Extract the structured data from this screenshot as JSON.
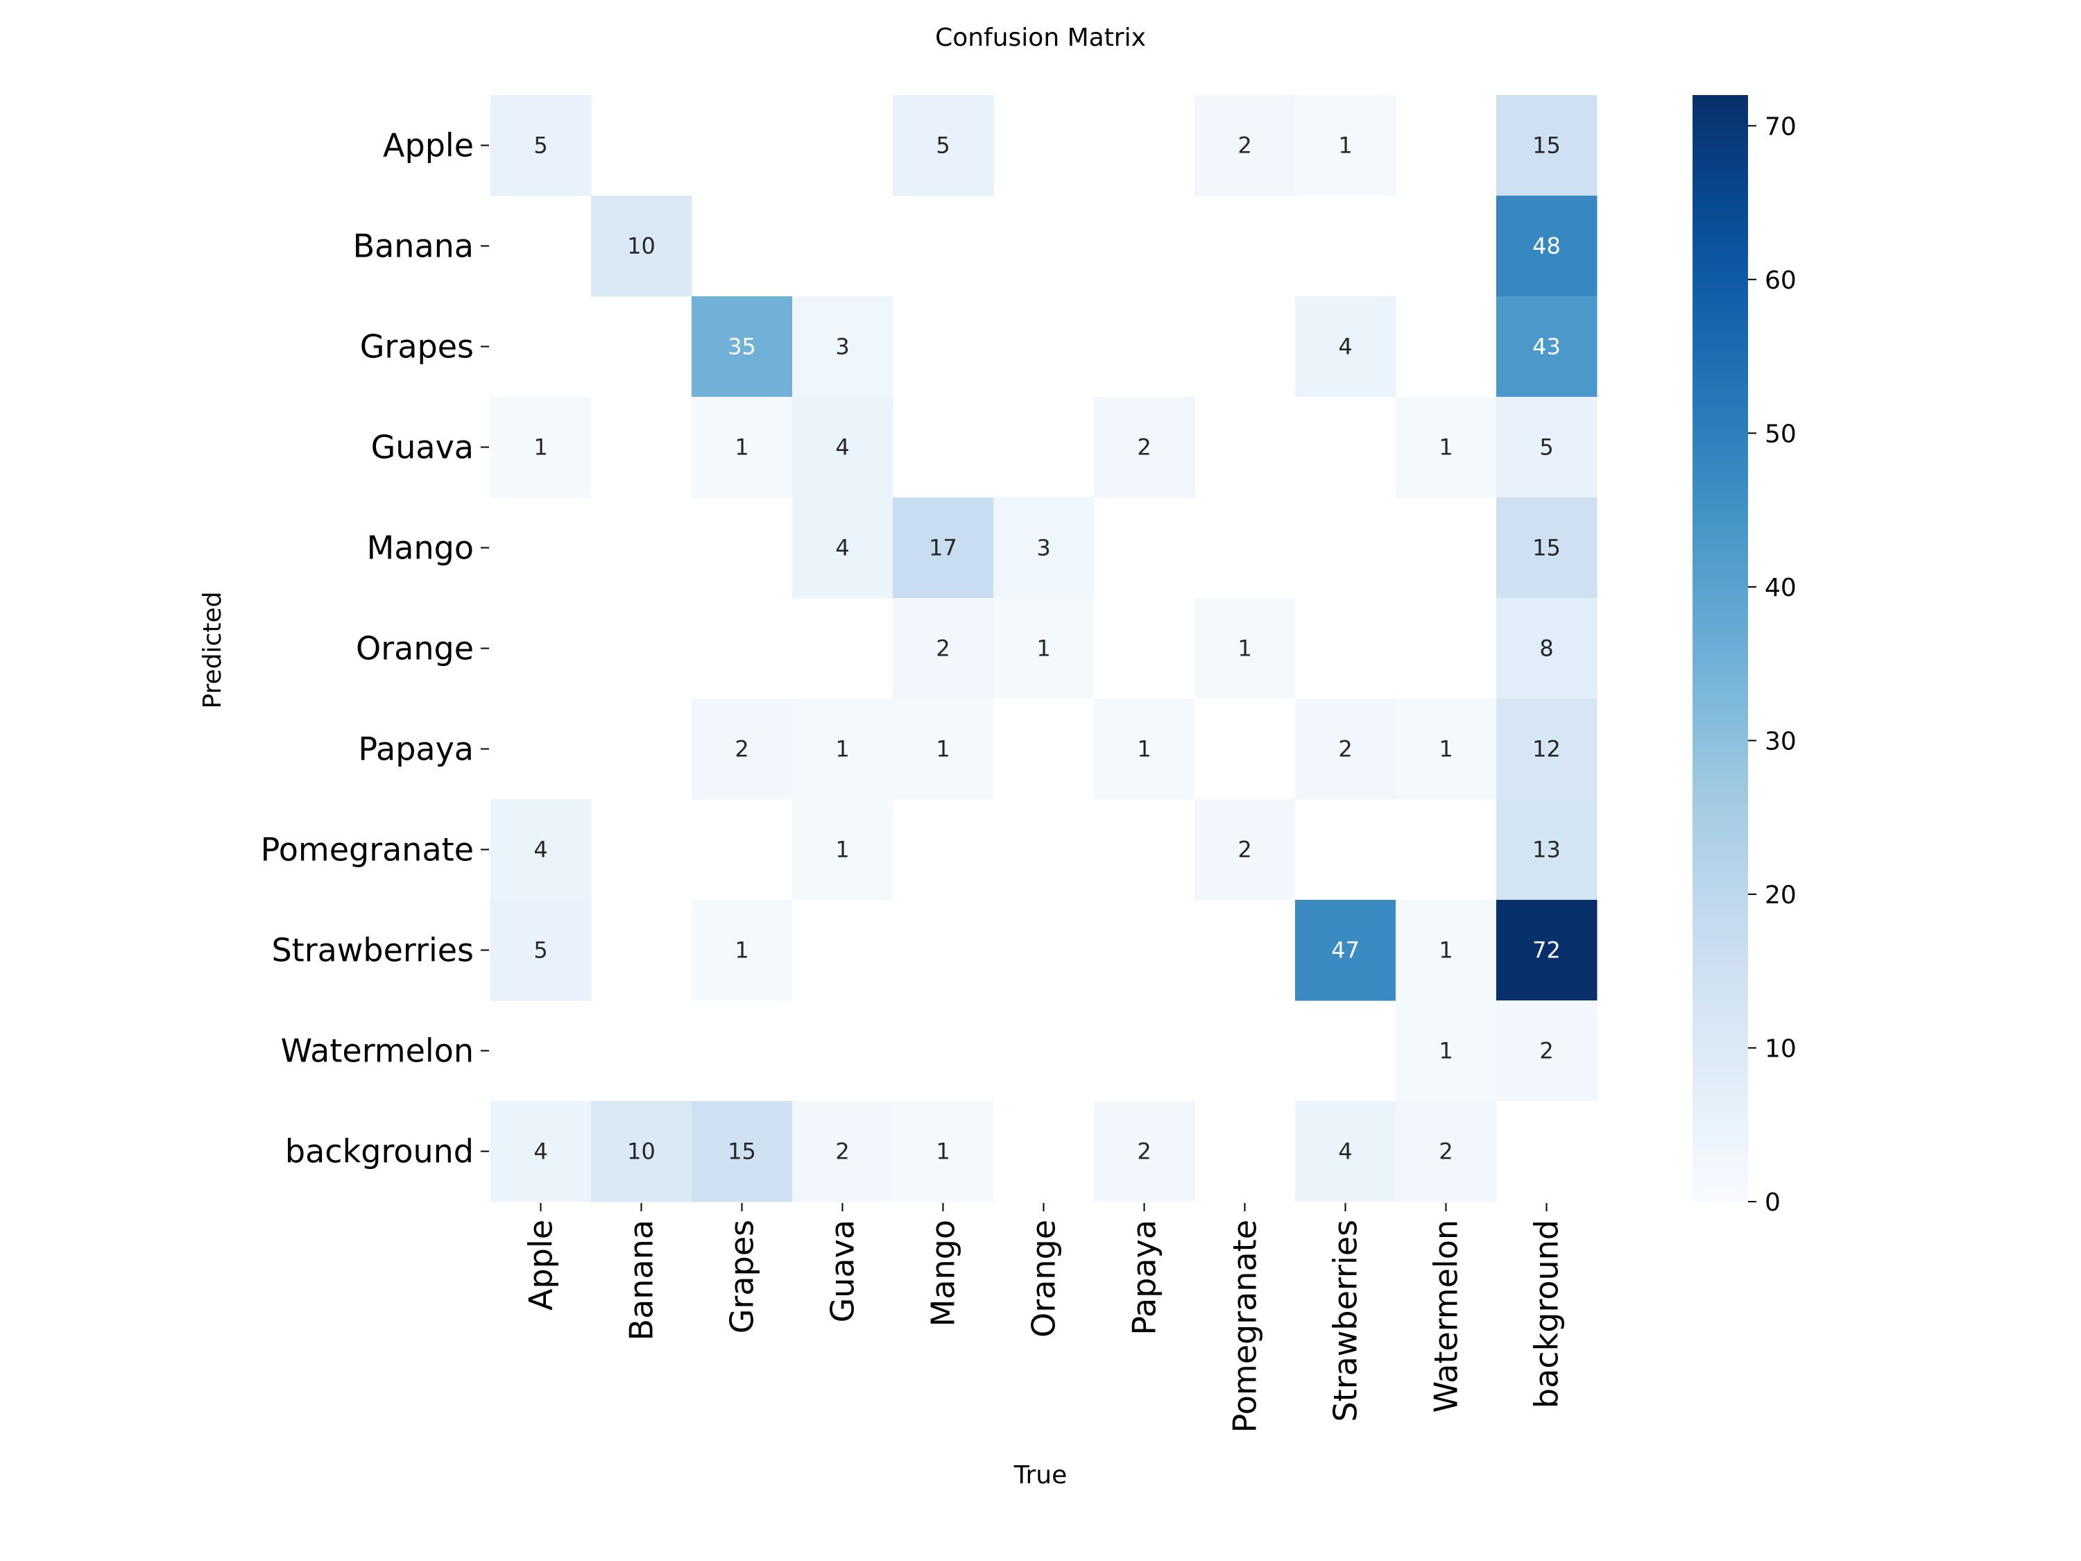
{
  "chart_data": {
    "type": "heatmap",
    "title": "Confusion Matrix",
    "xlabel": "True",
    "ylabel": "Predicted",
    "x_categories": [
      "Apple",
      "Banana",
      "Grapes",
      "Guava",
      "Mango",
      "Orange",
      "Papaya",
      "Pomegranate",
      "Strawberries",
      "Watermelon",
      "background"
    ],
    "y_categories": [
      "Apple",
      "Banana",
      "Grapes",
      "Guava",
      "Mango",
      "Orange",
      "Papaya",
      "Pomegranate",
      "Strawberries",
      "Watermelon",
      "background"
    ],
    "values": [
      [
        5,
        null,
        null,
        null,
        5,
        null,
        null,
        2,
        1,
        null,
        15
      ],
      [
        null,
        10,
        null,
        null,
        null,
        null,
        null,
        null,
        null,
        null,
        48
      ],
      [
        null,
        null,
        35,
        3,
        null,
        null,
        null,
        null,
        4,
        null,
        43
      ],
      [
        1,
        null,
        1,
        4,
        null,
        null,
        2,
        null,
        null,
        1,
        5
      ],
      [
        null,
        null,
        null,
        4,
        17,
        3,
        null,
        null,
        null,
        null,
        15
      ],
      [
        null,
        null,
        null,
        null,
        2,
        1,
        null,
        1,
        null,
        null,
        8
      ],
      [
        null,
        null,
        2,
        1,
        1,
        null,
        1,
        null,
        2,
        1,
        12
      ],
      [
        4,
        null,
        null,
        1,
        null,
        null,
        null,
        2,
        null,
        null,
        13
      ],
      [
        5,
        null,
        1,
        null,
        null,
        null,
        null,
        null,
        47,
        1,
        72
      ],
      [
        null,
        null,
        null,
        null,
        null,
        null,
        null,
        null,
        null,
        1,
        2
      ],
      [
        4,
        10,
        15,
        2,
        1,
        null,
        2,
        null,
        4,
        2,
        null
      ]
    ],
    "colorbar": {
      "min": 0,
      "max": 72,
      "ticks": [
        0,
        10,
        20,
        30,
        40,
        50,
        60,
        70
      ],
      "colormap": "Blues"
    },
    "grid": false
  }
}
